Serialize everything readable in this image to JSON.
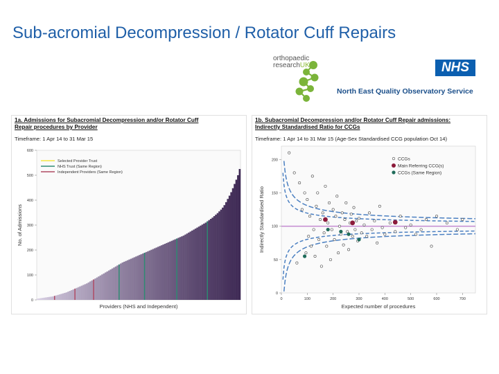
{
  "slide": {
    "title": "Sub-acromial Decompression / Rotator Cuff Repairs"
  },
  "logos": {
    "orthopaedic_line1": "orthopaedic",
    "orthopaedic_line2": "research",
    "orthopaedic_uk": "UK",
    "nhs": "NHS",
    "neqos": "North East Quality Observatory Service"
  },
  "colors": {
    "title": "#1f5fa8",
    "bar_dark": "#3f2a55",
    "bar_light": "#d9d0e4",
    "selected_provider": "#f5e642",
    "nhs_trust_same_region": "#2e8b72",
    "independent_same_region": "#b04a63",
    "funnel": "#4a7fc1",
    "ratio_line": "#c38bd1",
    "ccg_main": "#8b1a3a",
    "ccg_same": "#1f6b5a"
  },
  "chart_data": [
    {
      "type": "bar",
      "title_line1": "1a. Admissions for Subacromial Decompression and/or Rotator Cuff",
      "title_line2": "Repair procedures by Provider",
      "timeframe": "Timeframe: 1 Apr 14 to 31 Mar 15",
      "xlabel": "Providers (NHS and Independent)",
      "ylabel": "No. of Admissions",
      "ylim": [
        0,
        600
      ],
      "yticks": [
        0,
        100,
        200,
        300,
        400,
        500,
        600
      ],
      "grid": false,
      "legend_position": "top-left",
      "legend": [
        {
          "label": "Selected Provider Trust",
          "color": "#f5e642"
        },
        {
          "label": "NHS Trust (Same Region)",
          "color": "#2e8b72"
        },
        {
          "label": "Independent Providers (Same Region)",
          "color": "#b04a63"
        }
      ],
      "n_providers": 120,
      "shape": "sorted ascending values from about 5 to about 525, dark purple gradient",
      "values_sorted": [
        5,
        6,
        7,
        8,
        9,
        10,
        11,
        12,
        13,
        14,
        16,
        18,
        20,
        22,
        24,
        26,
        28,
        30,
        33,
        36,
        39,
        42,
        45,
        48,
        51,
        54,
        57,
        60,
        63,
        66,
        70,
        74,
        78,
        82,
        86,
        90,
        94,
        98,
        102,
        106,
        110,
        114,
        118,
        122,
        126,
        130,
        134,
        138,
        142,
        146,
        150,
        153,
        156,
        159,
        162,
        165,
        168,
        171,
        174,
        177,
        180,
        183,
        186,
        189,
        192,
        195,
        198,
        201,
        204,
        207,
        210,
        213,
        216,
        219,
        222,
        225,
        228,
        231,
        234,
        237,
        240,
        243,
        246,
        249,
        252,
        255,
        258,
        262,
        266,
        270,
        274,
        278,
        282,
        286,
        290,
        294,
        298,
        302,
        306,
        310,
        315,
        320,
        325,
        330,
        336,
        342,
        348,
        355,
        362,
        370,
        380,
        392,
        405,
        418,
        432,
        448,
        465,
        482,
        500,
        525
      ],
      "highlight_nhs_same_region_indices": [
        48,
        63,
        82,
        100
      ],
      "highlight_independent_same_region_indices": [
        10,
        22,
        33
      ]
    },
    {
      "type": "scatter",
      "title_line1": "1b. Subacromial Decompression and/or Rotator Cuff Repair admissions:",
      "title_line2": "Indirectly Standardised Ratio for CCGs",
      "timeframe": "Timeframe: 1 Apr 14 to 31 Mar 15 (Age-Sex Standardised CCG population Oct 14)",
      "xlabel": "Expected number of procedures",
      "ylabel": "Indirectly Standardised Ratio",
      "xlim": [
        0,
        750
      ],
      "ylim": [
        0,
        220
      ],
      "xticks": [
        0,
        100,
        200,
        300,
        400,
        500,
        600,
        700
      ],
      "yticks": [
        0,
        50,
        100,
        150,
        200
      ],
      "grid": false,
      "legend_position": "top-right",
      "legend": [
        {
          "label": "CCGs",
          "marker": "open circle"
        },
        {
          "label": "Main Referring CCG(s)",
          "color": "#8b1a3a"
        },
        {
          "label": "CCGs (Same Region)",
          "color": "#1f6b5a"
        }
      ],
      "reference_line": 100,
      "series": [
        {
          "name": "CCGs",
          "points": [
            [
              30,
              210
            ],
            [
              50,
              180
            ],
            [
              60,
              45
            ],
            [
              70,
              165
            ],
            [
              80,
              125
            ],
            [
              90,
              150
            ],
            [
              95,
              60
            ],
            [
              100,
              140
            ],
            [
              105,
              85
            ],
            [
              110,
              115
            ],
            [
              115,
              70
            ],
            [
              120,
              175
            ],
            [
              125,
              95
            ],
            [
              130,
              55
            ],
            [
              135,
              130
            ],
            [
              140,
              150
            ],
            [
              145,
              80
            ],
            [
              150,
              110
            ],
            [
              155,
              40
            ],
            [
              160,
              120
            ],
            [
              165,
              90
            ],
            [
              170,
              160
            ],
            [
              175,
              70
            ],
            [
              180,
              105
            ],
            [
              185,
              135
            ],
            [
              190,
              50
            ],
            [
              195,
              95
            ],
            [
              200,
              125
            ],
            [
              205,
              80
            ],
            [
              210,
              115
            ],
            [
              215,
              145
            ],
            [
              220,
              60
            ],
            [
              225,
              100
            ],
            [
              230,
              88
            ],
            [
              235,
              120
            ],
            [
              240,
              72
            ],
            [
              245,
              110
            ],
            [
              250,
              135
            ],
            [
              255,
              92
            ],
            [
              260,
              65
            ],
            [
              265,
              105
            ],
            [
              270,
              118
            ],
            [
              275,
              85
            ],
            [
              280,
              128
            ],
            [
              285,
              95
            ],
            [
              290,
              108
            ],
            [
              295,
              78
            ],
            [
              300,
              112
            ],
            [
              310,
              90
            ],
            [
              320,
              102
            ],
            [
              330,
              85
            ],
            [
              340,
              120
            ],
            [
              350,
              95
            ],
            [
              360,
              108
            ],
            [
              370,
              75
            ],
            [
              380,
              130
            ],
            [
              390,
              98
            ],
            [
              400,
              88
            ],
            [
              420,
              105
            ],
            [
              440,
              92
            ],
            [
              460,
              115
            ],
            [
              480,
              98
            ],
            [
              500,
              102
            ],
            [
              520,
              88
            ],
            [
              540,
              95
            ],
            [
              560,
              110
            ],
            [
              580,
              70
            ],
            [
              600,
              115
            ],
            [
              640,
              105
            ],
            [
              680,
              95
            ],
            [
              700,
              110
            ]
          ]
        },
        {
          "name": "Main Referring CCG(s)",
          "points": [
            [
              170,
              110
            ],
            [
              275,
              105
            ],
            [
              440,
              106
            ]
          ]
        },
        {
          "name": "CCGs (Same Region)",
          "points": [
            [
              90,
              55
            ],
            [
              180,
              95
            ],
            [
              230,
              92
            ],
            [
              260,
              88
            ],
            [
              300,
              80
            ]
          ]
        }
      ]
    }
  ]
}
